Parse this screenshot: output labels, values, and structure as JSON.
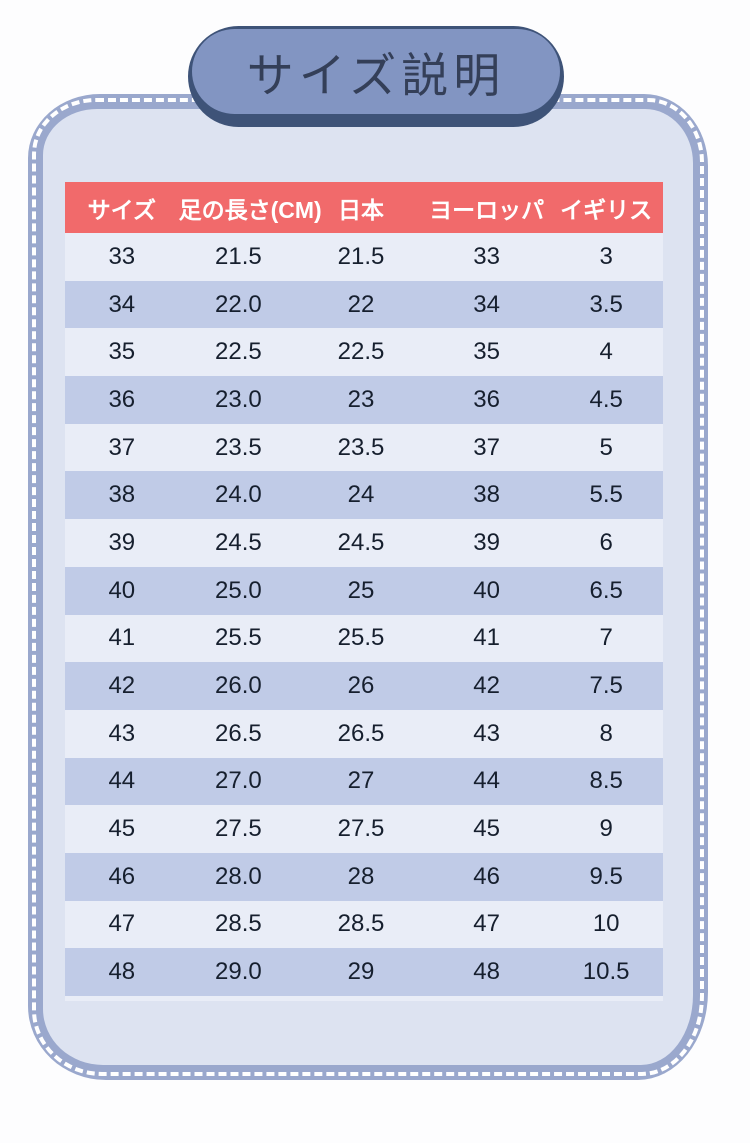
{
  "page_title": "サイズ説明",
  "chart_data": {
    "type": "table",
    "title": "サイズ説明",
    "columns": [
      "サイズ",
      "足の長さ(CM)",
      "日本",
      "ヨーロッパ",
      "イギリス"
    ],
    "rows": [
      [
        "33",
        "21.5",
        "21.5",
        "33",
        "3"
      ],
      [
        "34",
        "22.0",
        "22",
        "34",
        "3.5"
      ],
      [
        "35",
        "22.5",
        "22.5",
        "35",
        "4"
      ],
      [
        "36",
        "23.0",
        "23",
        "36",
        "4.5"
      ],
      [
        "37",
        "23.5",
        "23.5",
        "37",
        "5"
      ],
      [
        "38",
        "24.0",
        "24",
        "38",
        "5.5"
      ],
      [
        "39",
        "24.5",
        "24.5",
        "39",
        "6"
      ],
      [
        "40",
        "25.0",
        "25",
        "40",
        "6.5"
      ],
      [
        "41",
        "25.5",
        "25.5",
        "41",
        "7"
      ],
      [
        "42",
        "26.0",
        "26",
        "42",
        "7.5"
      ],
      [
        "43",
        "26.5",
        "26.5",
        "43",
        "8"
      ],
      [
        "44",
        "27.0",
        "27",
        "44",
        "8.5"
      ],
      [
        "45",
        "27.5",
        "27.5",
        "45",
        "9"
      ],
      [
        "46",
        "28.0",
        "28",
        "46",
        "9.5"
      ],
      [
        "47",
        "28.5",
        "28.5",
        "47",
        "10"
      ],
      [
        "48",
        "29.0",
        "29",
        "48",
        "10.5"
      ]
    ],
    "layout": {
      "striped": true,
      "header_style": "red-band-white-text",
      "stripe_rows": "even (34,36,38,...)"
    }
  },
  "colors": {
    "accent_red": "#f16a6b",
    "header_text": "#ffffff",
    "pill_fill": "#8295c2",
    "pill_border": "#3e5378",
    "title_text": "#343f58",
    "card_border": "#9aa8cd",
    "card_bg": "#dde3f1",
    "table_bg": "#e9edf7",
    "row_stripe": "#c0cbe7",
    "cell_text": "#161f2e",
    "dash_color": "#ffffff",
    "page_bg": "#fdfdfe"
  }
}
